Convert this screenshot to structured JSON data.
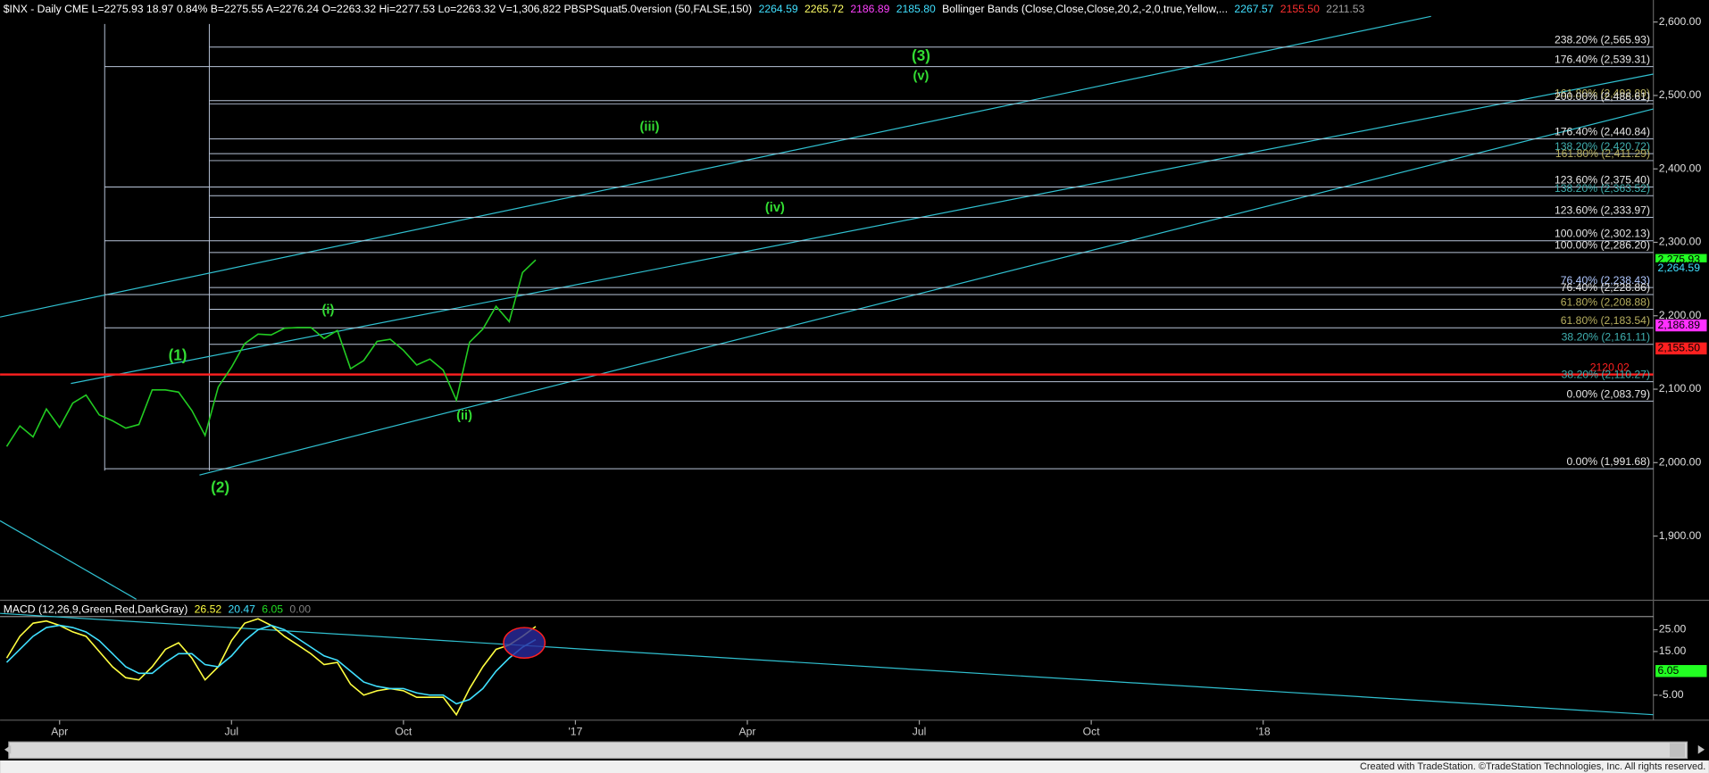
{
  "chart_data": [
    {
      "type": "line",
      "header": [
        {
          "text": "$INX - Daily  CME  L=2275.93  18.97  0.84%  B=2275.55  A=2276.24  O=2263.32  Hi=2277.53  Lo=2263.32  V=1,306,822  PBSPSquat5.0version (50,FALSE,150)",
          "color": "#ffffff"
        },
        {
          "text": "2264.59",
          "color": "#40e0ff"
        },
        {
          "text": "2265.72",
          "color": "#ffff66"
        },
        {
          "text": "2186.89",
          "color": "#ff40ff"
        },
        {
          "text": "2185.80",
          "color": "#40e0ff"
        },
        {
          "text": "Bollinger Bands (Close,Close,Close,20,2,-2,0,true,Yellow,...",
          "color": "#ffffff"
        },
        {
          "text": "2267.57",
          "color": "#40e0ff"
        },
        {
          "text": "2155.50",
          "color": "#ff3030"
        },
        {
          "text": "2211.53",
          "color": "#a0a0a0"
        }
      ],
      "categories": [
        null,
        null,
        null,
        null,
        "Apr",
        null,
        null,
        null,
        null,
        null,
        null,
        null,
        null,
        null,
        null,
        null,
        null,
        "Jul",
        null,
        null,
        null,
        null,
        null,
        null,
        null,
        null,
        null,
        null,
        null,
        null,
        "Oct",
        null,
        null,
        null,
        null,
        null,
        null,
        null,
        null,
        null,
        null,
        null,
        null,
        "'17",
        null,
        null,
        null,
        null,
        null,
        null,
        null,
        null,
        null,
        null,
        null,
        null,
        "Apr",
        null,
        null,
        null,
        null,
        null,
        null,
        null,
        null,
        null,
        null,
        null,
        null,
        "Jul",
        null,
        null,
        null,
        null,
        null,
        null,
        null,
        null,
        null,
        null,
        null,
        null,
        "Oct",
        null,
        null,
        null,
        null,
        null,
        null,
        null,
        null,
        null,
        null,
        null,
        null,
        "'18",
        null,
        null,
        null,
        null,
        null,
        null,
        null,
        null,
        null,
        null,
        null,
        null,
        null,
        null,
        null,
        null,
        null,
        null,
        null,
        null,
        null,
        null,
        null,
        null,
        null,
        null,
        null,
        null,
        null
      ],
      "series": [
        {
          "name": "$INX",
          "color": "#22cc22",
          "values": [
            2022,
            2050,
            2035,
            2073,
            2048,
            2081,
            2092,
            2065,
            2057,
            2047,
            2052,
            2099,
            2099,
            2096,
            2071,
            2037,
            2103,
            2130,
            2162,
            2175,
            2174,
            2183,
            2184,
            2184,
            2169,
            2180,
            2128,
            2139,
            2165,
            2168,
            2153,
            2133,
            2141,
            2126,
            2085,
            2164,
            2182,
            2213,
            2192,
            2259,
            2276,
            null,
            null,
            null,
            null,
            null,
            null,
            null,
            null,
            null,
            null,
            null,
            null,
            null,
            null,
            null,
            null,
            null,
            null,
            null,
            null,
            null,
            null,
            null,
            null,
            null,
            null,
            null,
            null,
            null,
            null,
            null,
            null,
            null,
            null,
            null,
            null,
            null,
            null,
            null,
            null,
            null,
            null,
            null,
            null,
            null,
            null,
            null,
            null,
            null,
            null,
            null,
            null,
            null,
            null,
            null,
            null,
            null,
            null,
            null,
            null,
            null,
            null,
            null,
            null,
            null,
            null,
            null,
            null,
            null,
            null,
            null,
            null,
            null,
            null,
            null,
            null,
            null,
            null,
            null,
            null,
            null,
            null,
            null,
            null
          ]
        }
      ],
      "ylim": [
        1814,
        2630
      ],
      "yticks": [
        {
          "value": 1900,
          "label": "1,900.00"
        },
        {
          "value": 2000,
          "label": "2,000.00"
        },
        {
          "value": 2100,
          "label": "2,100.00"
        },
        {
          "value": 2200,
          "label": "2,200.00"
        },
        {
          "value": 2300,
          "label": "2,300.00"
        },
        {
          "value": 2400,
          "label": "2,400.00"
        },
        {
          "value": 2500,
          "label": "2,500.00"
        },
        {
          "value": 2600,
          "label": "2,600.00"
        }
      ],
      "levels": [
        {
          "value": 2565.93,
          "label": "238.20% (2,565.93)",
          "color": "#e8e8e8"
        },
        {
          "value": 2539.31,
          "label": "176.40% (2,539.31)",
          "color": "#e8e8e8"
        },
        {
          "value": 2492.89,
          "label": "161.80% (2,492.89)",
          "color": "#b8b060"
        },
        {
          "value": 2488.61,
          "label": "200.00% (2,488.61)",
          "color": "#e8e8e8"
        },
        {
          "value": 2440.84,
          "label": "176.40% (2,440.84)",
          "color": "#e8e8e8"
        },
        {
          "value": 2420.72,
          "label": "138.20% (2,420.72)",
          "color": "#40b0b0"
        },
        {
          "value": 2411.29,
          "label": "161.80% (2,411.29)",
          "color": "#b8b060"
        },
        {
          "value": 2375.4,
          "label": "123.60% (2,375.40)",
          "color": "#e8e8e8"
        },
        {
          "value": 2363.52,
          "label": "138.20% (2,363.52)",
          "color": "#40b0b0"
        },
        {
          "value": 2333.97,
          "label": "123.60% (2,333.97)",
          "color": "#e8e8e8"
        },
        {
          "value": 2302.13,
          "label": "100.00% (2,302.13)",
          "color": "#e8e8e8"
        },
        {
          "value": 2286.2,
          "label": "100.00% (2,286.20)",
          "color": "#e8e8e8"
        },
        {
          "value": 2238.43,
          "label": "76.40% (2,238.43)",
          "color": "#b0c8ff"
        },
        {
          "value": 2228.86,
          "label": "76.40% (2,228.86)",
          "color": "#e8e8e8"
        },
        {
          "value": 2208.88,
          "label": "61.80% (2,208.88)",
          "color": "#b8b060"
        },
        {
          "value": 2183.54,
          "label": "61.80% (2,183.54)",
          "color": "#b8b060"
        },
        {
          "value": 2161.11,
          "label": "38.20% (2,161.11)",
          "color": "#40b0b0"
        },
        {
          "value": 2120.02,
          "label": "2120.02",
          "color": "#ff2020",
          "line_width": 2
        },
        {
          "value": 2110.27,
          "label": "38.20% (2,110.27)",
          "color": "#40b0b0"
        },
        {
          "value": 2083.79,
          "label": "0.00% (2,083.79)",
          "color": "#e8e8e8"
        },
        {
          "value": 1991.68,
          "label": "0.00% (1,991.68)",
          "color": "#e8e8e8"
        }
      ],
      "tags": [
        {
          "value": 2275.93,
          "label": "2,275.93",
          "color": "#000000",
          "background": "#22ff22"
        },
        {
          "value": 2264.59,
          "label": "2,264.59",
          "color": "#40e0ff",
          "background": "#000000"
        },
        {
          "value": 2186.89,
          "label": "2,186.89",
          "color": "#000000",
          "background": "#ff30ff"
        },
        {
          "value": 2155.5,
          "label": "2,155.50",
          "color": "#000000",
          "background": "#ff2020"
        }
      ],
      "waves": [
        "(3)",
        "(v)",
        "(iii)",
        "(iv)",
        "(i)",
        "(1)",
        "(ii)",
        "(2)"
      ]
    },
    {
      "type": "line",
      "header": [
        {
          "text": "MACD (12,26,9,Green,Red,DarkGray)",
          "color": "#ffffff"
        },
        {
          "text": "26.52",
          "color": "#ffff40"
        },
        {
          "text": "20.47",
          "color": "#40e0ff"
        },
        {
          "text": "6.05",
          "color": "#22dd22"
        },
        {
          "text": "0.00",
          "color": "#808080"
        }
      ],
      "series": [
        {
          "name": "MACD",
          "color": "#ffff40",
          "values": [
            12,
            22,
            28,
            29,
            27,
            24,
            22,
            15,
            8,
            3,
            2,
            8,
            16,
            19,
            12,
            2,
            8,
            20,
            28,
            30,
            27,
            22,
            18,
            14,
            9,
            10,
            0,
            -5,
            -3,
            -2,
            -3,
            -6,
            -6,
            -6,
            -14,
            -2,
            8,
            16,
            18,
            22,
            26.52,
            null,
            null,
            null,
            null,
            null,
            null,
            null,
            null,
            null,
            null,
            null,
            null,
            null,
            null,
            null,
            null,
            null,
            null,
            null,
            null,
            null,
            null,
            null,
            null,
            null,
            null,
            null,
            null,
            null,
            null,
            null,
            null,
            null,
            null,
            null,
            null,
            null,
            null,
            null,
            null,
            null,
            null,
            null,
            null,
            null,
            null,
            null,
            null,
            null,
            null,
            null,
            null,
            null,
            null,
            null,
            null,
            null,
            null,
            null,
            null,
            null,
            null,
            null,
            null,
            null,
            null,
            null,
            null,
            null,
            null,
            null,
            null,
            null,
            null,
            null,
            null,
            null,
            null,
            null,
            null,
            null,
            null,
            null,
            null
          ]
        },
        {
          "name": "Signal",
          "color": "#40e0ff",
          "values": [
            10,
            16,
            22,
            26,
            27,
            26,
            24,
            20,
            14,
            8,
            5,
            5,
            10,
            14,
            14,
            9,
            8,
            13,
            20,
            25,
            27,
            25,
            21,
            17,
            13,
            11,
            6,
            1,
            -1,
            -2,
            -2,
            -4,
            -5,
            -5,
            -9,
            -7,
            -2,
            6,
            12,
            17,
            20.47,
            null,
            null,
            null,
            null,
            null,
            null,
            null,
            null,
            null,
            null,
            null,
            null,
            null,
            null,
            null,
            null,
            null,
            null,
            null,
            null,
            null,
            null,
            null,
            null,
            null,
            null,
            null,
            null,
            null,
            null,
            null,
            null,
            null,
            null,
            null,
            null,
            null,
            null,
            null,
            null,
            null,
            null,
            null,
            null,
            null,
            null,
            null,
            null,
            null,
            null,
            null,
            null,
            null,
            null,
            null,
            null,
            null,
            null,
            null,
            null,
            null,
            null,
            null,
            null,
            null,
            null,
            null,
            null,
            null,
            null,
            null,
            null,
            null,
            null,
            null,
            null,
            null,
            null,
            null,
            null,
            null,
            null,
            null,
            null
          ]
        }
      ],
      "ylim": [
        -18.5,
        37.5
      ],
      "yticks": [
        {
          "value": 25,
          "label": "25.00"
        },
        {
          "value": 15,
          "label": "15.00"
        },
        {
          "value": -5,
          "label": "-5.00"
        }
      ],
      "tags": [
        {
          "value": 6.05,
          "label": "6.05",
          "color": "#000000",
          "background": "#22ff22"
        }
      ]
    }
  ],
  "footer": "Created with TradeStation. ©TradeStation Technologies, Inc. All rights reserved."
}
